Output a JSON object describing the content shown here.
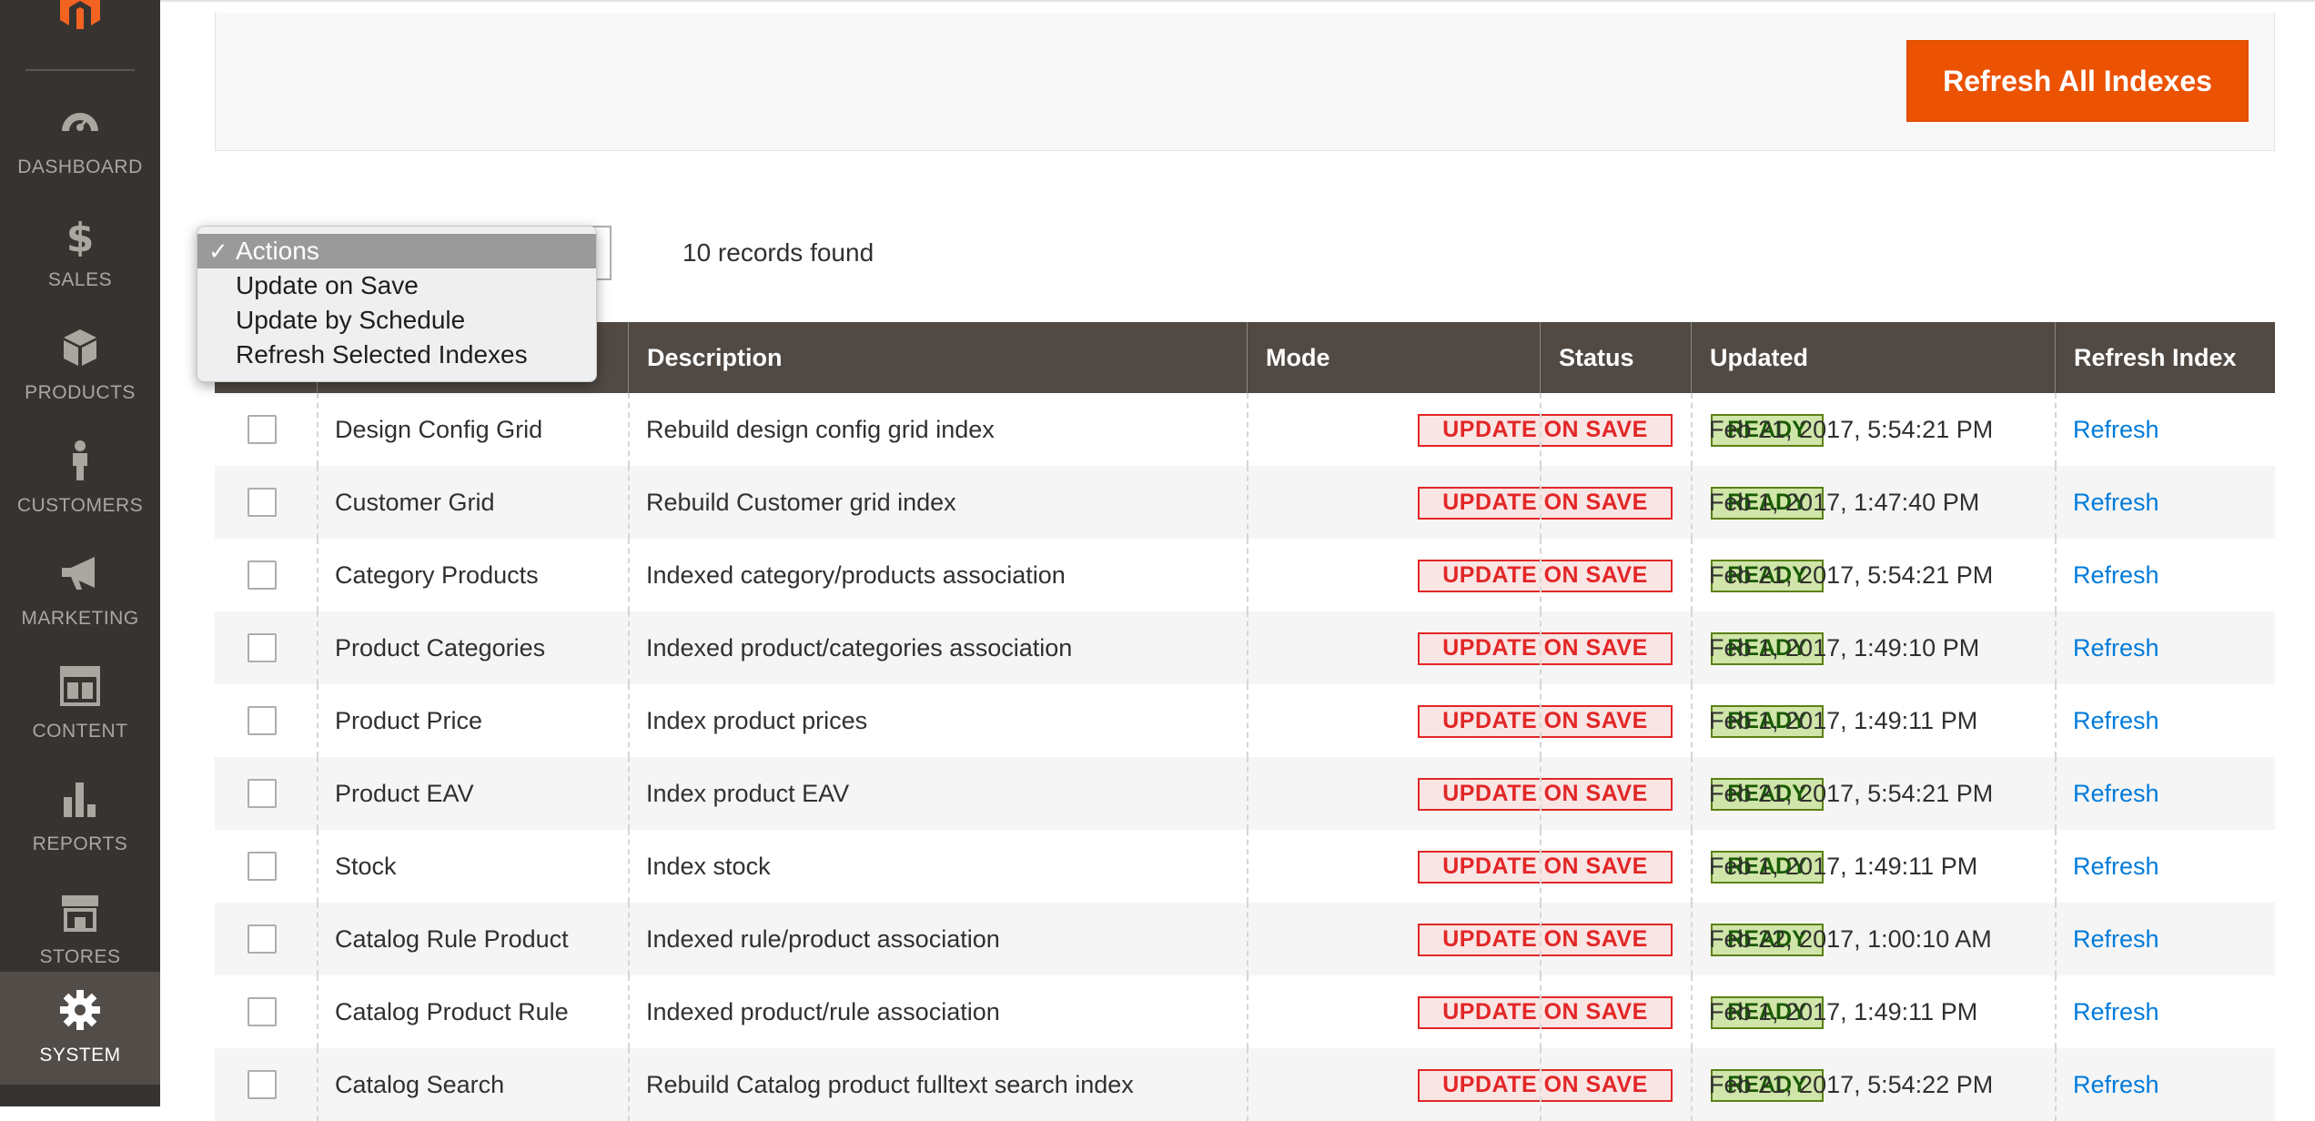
{
  "sidebar": {
    "items": [
      {
        "label": "DASHBOARD",
        "icon": "dashboard-icon"
      },
      {
        "label": "SALES",
        "icon": "dollar-icon"
      },
      {
        "label": "PRODUCTS",
        "icon": "box-icon"
      },
      {
        "label": "CUSTOMERS",
        "icon": "person-icon"
      },
      {
        "label": "MARKETING",
        "icon": "megaphone-icon"
      },
      {
        "label": "CONTENT",
        "icon": "layout-icon"
      },
      {
        "label": "REPORTS",
        "icon": "bar-chart-icon"
      },
      {
        "label": "STORES",
        "icon": "store-icon"
      },
      {
        "label": "SYSTEM",
        "icon": "gear-icon",
        "active": true
      }
    ]
  },
  "header": {
    "refresh_all_label": "Refresh All Indexes"
  },
  "mass_action": {
    "options": [
      "Actions",
      "Update on Save",
      "Update by Schedule",
      "Refresh Selected Indexes"
    ],
    "selected": "Actions",
    "check": "✓"
  },
  "records_found": "10 records found",
  "grid": {
    "columns": [
      "Description",
      "Mode",
      "Status",
      "Updated",
      "Refresh Index"
    ],
    "rows": [
      {
        "name": "Design Config Grid",
        "description": "Rebuild design config grid index",
        "mode": "UPDATE ON SAVE",
        "status": "READY",
        "updated": "Feb 21, 2017, 5:54:21 PM",
        "action": "Refresh"
      },
      {
        "name": "Customer Grid",
        "description": "Rebuild Customer grid index",
        "mode": "UPDATE ON SAVE",
        "status": "READY",
        "updated": "Feb 1, 2017, 1:47:40 PM",
        "action": "Refresh"
      },
      {
        "name": "Category Products",
        "description": "Indexed category/products association",
        "mode": "UPDATE ON SAVE",
        "status": "READY",
        "updated": "Feb 21, 2017, 5:54:21 PM",
        "action": "Refresh"
      },
      {
        "name": "Product Categories",
        "description": "Indexed product/categories association",
        "mode": "UPDATE ON SAVE",
        "status": "READY",
        "updated": "Feb 1, 2017, 1:49:10 PM",
        "action": "Refresh"
      },
      {
        "name": "Product Price",
        "description": "Index product prices",
        "mode": "UPDATE ON SAVE",
        "status": "READY",
        "updated": "Feb 1, 2017, 1:49:11 PM",
        "action": "Refresh"
      },
      {
        "name": "Product EAV",
        "description": "Index product EAV",
        "mode": "UPDATE ON SAVE",
        "status": "READY",
        "updated": "Feb 21, 2017, 5:54:21 PM",
        "action": "Refresh"
      },
      {
        "name": "Stock",
        "description": "Index stock",
        "mode": "UPDATE ON SAVE",
        "status": "READY",
        "updated": "Feb 1, 2017, 1:49:11 PM",
        "action": "Refresh"
      },
      {
        "name": "Catalog Rule Product",
        "description": "Indexed rule/product association",
        "mode": "UPDATE ON SAVE",
        "status": "READY",
        "updated": "Feb 22, 2017, 1:00:10 AM",
        "action": "Refresh"
      },
      {
        "name": "Catalog Product Rule",
        "description": "Indexed product/rule association",
        "mode": "UPDATE ON SAVE",
        "status": "READY",
        "updated": "Feb 1, 2017, 1:49:11 PM",
        "action": "Refresh"
      },
      {
        "name": "Catalog Search",
        "description": "Rebuild Catalog product fulltext search index",
        "mode": "UPDATE ON SAVE",
        "status": "READY",
        "updated": "Feb 21, 2017, 5:54:22 PM",
        "action": "Refresh"
      }
    ]
  },
  "colors": {
    "sidebar_bg": "#373330",
    "active_bg": "#524d49",
    "accent": "#eb5202",
    "grid_header": "#514943",
    "link": "#007bdb",
    "mode_red": "#e22626",
    "status_green": "#185b00"
  }
}
